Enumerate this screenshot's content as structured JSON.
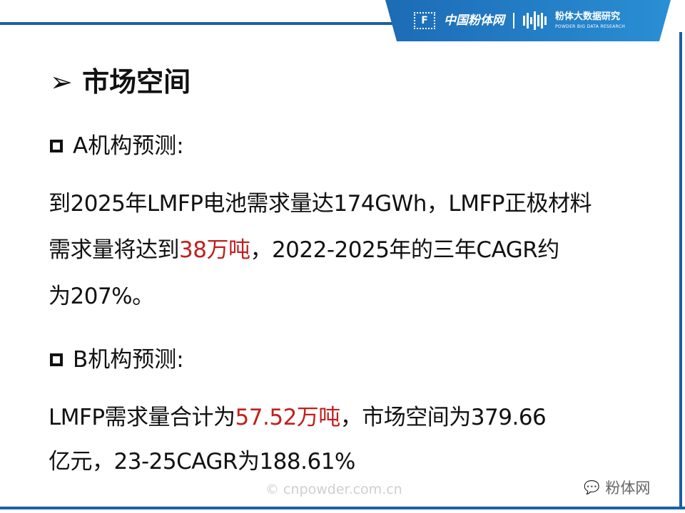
{
  "header": {
    "brand1": "中国粉体网",
    "brand2": "粉体大数据研究",
    "brand2_sub": "POWDER BIG DATA RESEARCH",
    "logo_letter": "F"
  },
  "title": "市场空间",
  "section_a": {
    "heading": "A机构预测:",
    "lines": [
      [
        {
          "t": "到2025年LMFP电池需求量达174GWh，LMFP正极材料"
        }
      ],
      [
        {
          "t": "需求量将达到"
        },
        {
          "t": "38万吨",
          "red": true
        },
        {
          "t": "，2022-2025年的三年CAGR约"
        }
      ],
      [
        {
          "t": "为207%。"
        }
      ]
    ]
  },
  "section_b": {
    "heading": "B机构预测:",
    "lines": [
      [
        {
          "t": "LMFP需求量合计为"
        },
        {
          "t": "57.52万吨",
          "red": true
        },
        {
          "t": "，市场空间为379.66"
        }
      ],
      [
        {
          "t": "亿元，23-25CAGR为188.61%"
        }
      ]
    ]
  },
  "watermark": "© cnpowder.com.cn",
  "wechat": "粉体网",
  "colors": {
    "accent": "#1a5fa8",
    "highlight": "#c0201e"
  }
}
